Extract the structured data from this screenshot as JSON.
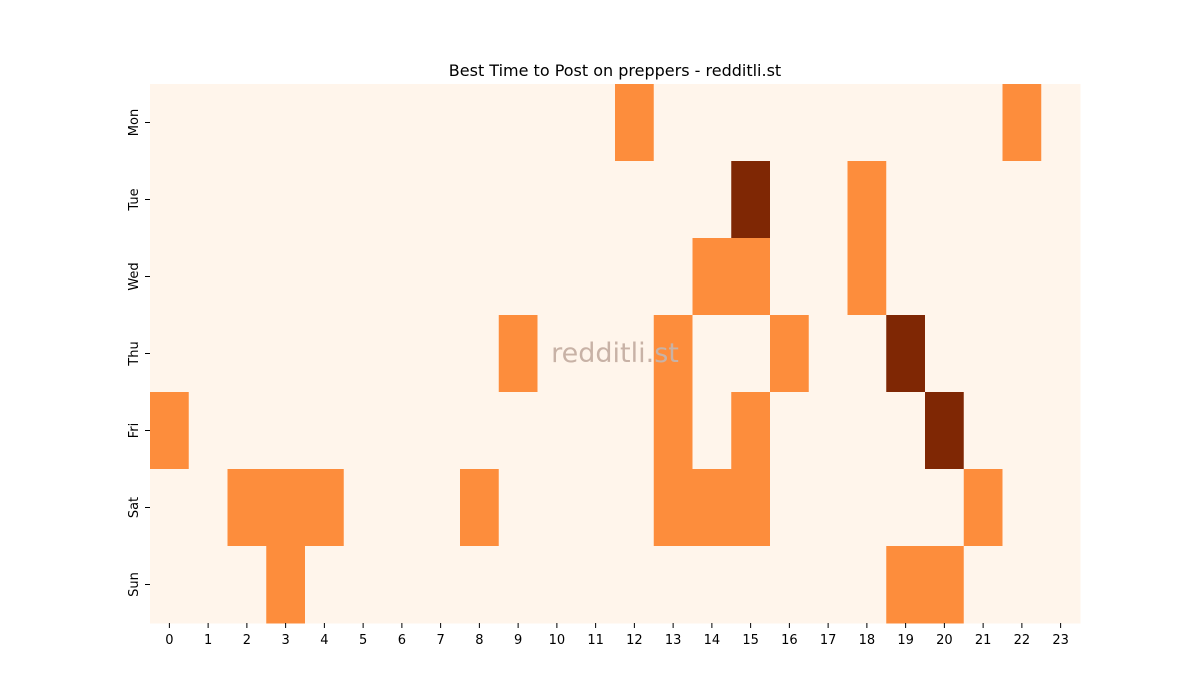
{
  "chart_data": {
    "type": "heatmap",
    "title": "Best Time to Post on preppers - redditli.st",
    "watermark": "redditli.st",
    "xlabel": "",
    "ylabel": "",
    "x_categories": [
      "0",
      "1",
      "2",
      "3",
      "4",
      "5",
      "6",
      "7",
      "8",
      "9",
      "10",
      "11",
      "12",
      "13",
      "14",
      "15",
      "16",
      "17",
      "18",
      "19",
      "20",
      "21",
      "22",
      "23"
    ],
    "y_categories": [
      "Mon",
      "Tue",
      "Wed",
      "Thu",
      "Fri",
      "Sat",
      "Sun"
    ],
    "values": [
      [
        0,
        0,
        0,
        0,
        0,
        0,
        0,
        0,
        0,
        0,
        0,
        0,
        1,
        0,
        0,
        0,
        0,
        0,
        0,
        0,
        0,
        0,
        1,
        0
      ],
      [
        0,
        0,
        0,
        0,
        0,
        0,
        0,
        0,
        0,
        0,
        0,
        0,
        0,
        0,
        0,
        2,
        0,
        0,
        1,
        0,
        0,
        0,
        0,
        0
      ],
      [
        0,
        0,
        0,
        0,
        0,
        0,
        0,
        0,
        0,
        0,
        0,
        0,
        0,
        0,
        1,
        1,
        0,
        0,
        1,
        0,
        0,
        0,
        0,
        0
      ],
      [
        0,
        0,
        0,
        0,
        0,
        0,
        0,
        0,
        0,
        1,
        0,
        0,
        0,
        1,
        0,
        0,
        1,
        0,
        0,
        2,
        0,
        0,
        0,
        0
      ],
      [
        1,
        0,
        0,
        0,
        0,
        0,
        0,
        0,
        0,
        0,
        0,
        0,
        0,
        1,
        0,
        1,
        0,
        0,
        0,
        0,
        2,
        0,
        0,
        0
      ],
      [
        0,
        0,
        1,
        1,
        1,
        0,
        0,
        0,
        1,
        0,
        0,
        0,
        0,
        1,
        1,
        1,
        0,
        0,
        0,
        0,
        0,
        1,
        0,
        0
      ],
      [
        0,
        0,
        0,
        1,
        0,
        0,
        0,
        0,
        0,
        0,
        0,
        0,
        0,
        0,
        0,
        0,
        0,
        0,
        0,
        1,
        1,
        0,
        0,
        0
      ]
    ],
    "colorscale": [
      "#fff5eb",
      "#fd8d3c",
      "#7f2704"
    ],
    "legend": "none"
  }
}
